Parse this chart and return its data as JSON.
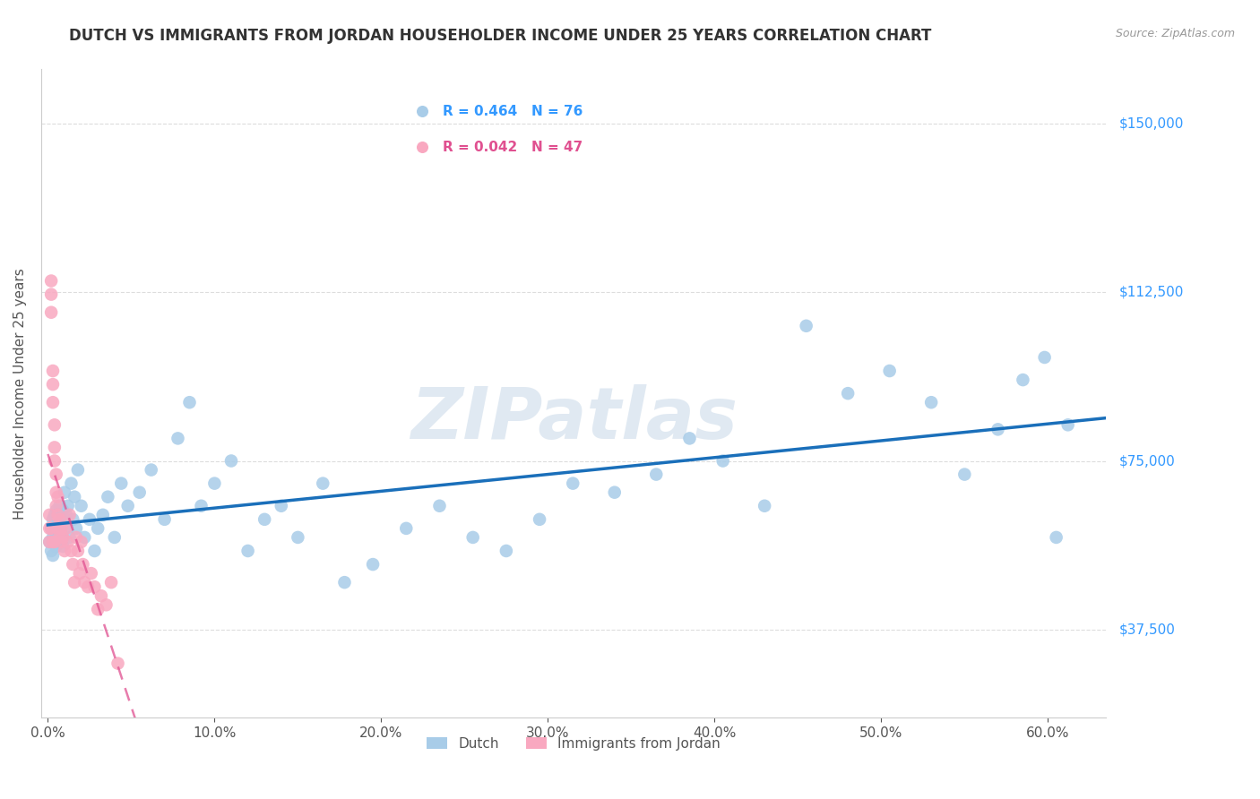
{
  "title": "DUTCH VS IMMIGRANTS FROM JORDAN HOUSEHOLDER INCOME UNDER 25 YEARS CORRELATION CHART",
  "source": "Source: ZipAtlas.com",
  "ylabel": "Householder Income Under 25 years",
  "xlabel_ticks": [
    "0.0%",
    "10.0%",
    "20.0%",
    "30.0%",
    "40.0%",
    "50.0%",
    "60.0%"
  ],
  "xlabel_vals": [
    0.0,
    0.1,
    0.2,
    0.3,
    0.4,
    0.5,
    0.6
  ],
  "ytick_labels": [
    "$37,500",
    "$75,000",
    "$112,500",
    "$150,000"
  ],
  "ytick_vals": [
    37500,
    75000,
    112500,
    150000
  ],
  "ymin": 18000,
  "ymax": 162000,
  "xmin": -0.004,
  "xmax": 0.635,
  "dutch_R": 0.464,
  "dutch_N": 76,
  "jordan_R": 0.042,
  "jordan_N": 47,
  "dutch_color": "#a8cce8",
  "jordan_color": "#f9a8c0",
  "dutch_line_color": "#1a6fba",
  "jordan_line_color": "#e05090",
  "jordan_line_dash": [
    6,
    4
  ],
  "watermark": "ZIPatlas",
  "dutch_scatter_x": [
    0.001,
    0.002,
    0.002,
    0.003,
    0.003,
    0.003,
    0.004,
    0.004,
    0.004,
    0.005,
    0.005,
    0.005,
    0.006,
    0.006,
    0.007,
    0.007,
    0.008,
    0.008,
    0.009,
    0.009,
    0.01,
    0.01,
    0.011,
    0.012,
    0.013,
    0.014,
    0.015,
    0.016,
    0.017,
    0.018,
    0.02,
    0.022,
    0.025,
    0.028,
    0.03,
    0.033,
    0.036,
    0.04,
    0.044,
    0.048,
    0.055,
    0.062,
    0.07,
    0.078,
    0.085,
    0.092,
    0.1,
    0.11,
    0.12,
    0.13,
    0.14,
    0.15,
    0.165,
    0.178,
    0.195,
    0.215,
    0.235,
    0.255,
    0.275,
    0.295,
    0.315,
    0.34,
    0.365,
    0.385,
    0.405,
    0.43,
    0.455,
    0.48,
    0.505,
    0.53,
    0.55,
    0.57,
    0.585,
    0.598,
    0.605,
    0.612
  ],
  "dutch_scatter_y": [
    57000,
    60000,
    55000,
    62000,
    58000,
    54000,
    63000,
    57000,
    60000,
    58000,
    64000,
    56000,
    60000,
    62000,
    57000,
    65000,
    58000,
    62000,
    56000,
    64000,
    68000,
    60000,
    63000,
    65000,
    58000,
    70000,
    62000,
    67000,
    60000,
    73000,
    65000,
    58000,
    62000,
    55000,
    60000,
    63000,
    67000,
    58000,
    70000,
    65000,
    68000,
    73000,
    62000,
    80000,
    88000,
    65000,
    70000,
    75000,
    55000,
    62000,
    65000,
    58000,
    70000,
    48000,
    52000,
    60000,
    65000,
    58000,
    55000,
    62000,
    70000,
    68000,
    72000,
    80000,
    75000,
    65000,
    105000,
    90000,
    95000,
    88000,
    72000,
    82000,
    93000,
    98000,
    58000,
    83000
  ],
  "jordan_scatter_x": [
    0.001,
    0.001,
    0.001,
    0.002,
    0.002,
    0.002,
    0.002,
    0.003,
    0.003,
    0.003,
    0.003,
    0.004,
    0.004,
    0.004,
    0.004,
    0.005,
    0.005,
    0.005,
    0.006,
    0.006,
    0.006,
    0.007,
    0.007,
    0.008,
    0.008,
    0.009,
    0.01,
    0.011,
    0.012,
    0.013,
    0.014,
    0.015,
    0.016,
    0.017,
    0.018,
    0.019,
    0.02,
    0.021,
    0.022,
    0.024,
    0.026,
    0.028,
    0.03,
    0.032,
    0.035,
    0.038,
    0.042
  ],
  "jordan_scatter_y": [
    60000,
    57000,
    63000,
    112000,
    108000,
    115000,
    60000,
    95000,
    92000,
    88000,
    57000,
    83000,
    78000,
    75000,
    57000,
    72000,
    68000,
    65000,
    67000,
    63000,
    60000,
    62000,
    58000,
    60000,
    57000,
    58000,
    55000,
    60000,
    57000,
    63000,
    55000,
    52000,
    48000,
    58000,
    55000,
    50000,
    57000,
    52000,
    48000,
    47000,
    50000,
    47000,
    42000,
    45000,
    43000,
    48000,
    30000
  ]
}
